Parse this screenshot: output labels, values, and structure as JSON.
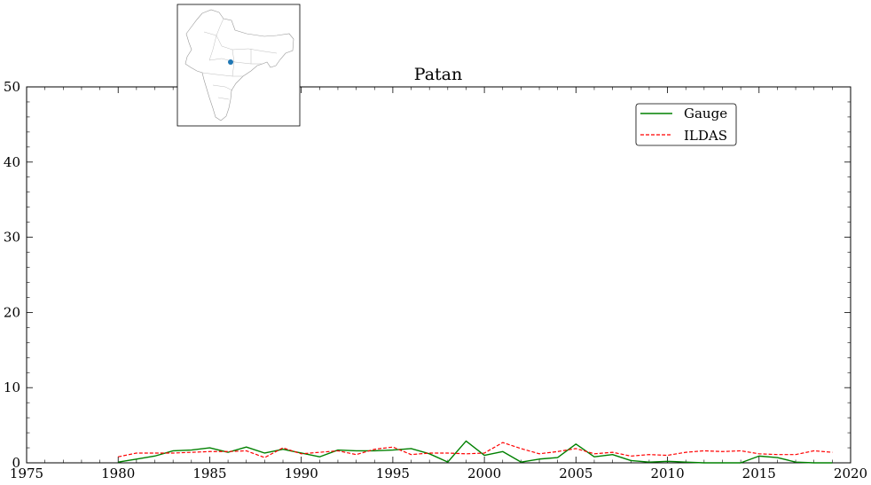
{
  "chart_data": {
    "type": "line",
    "title": "Patan",
    "xlabel": "",
    "ylabel": "",
    "xlim": [
      1975,
      2020
    ],
    "ylim": [
      0,
      50
    ],
    "xticks": [
      1975,
      1980,
      1985,
      1990,
      1995,
      2000,
      2005,
      2010,
      2015,
      2020
    ],
    "yticks": [
      0,
      10,
      20,
      30,
      40,
      50
    ],
    "grid": false,
    "legend_position": "top-right",
    "x": [
      1980,
      1981,
      1982,
      1983,
      1984,
      1985,
      1986,
      1987,
      1988,
      1989,
      1990,
      1991,
      1992,
      1993,
      1994,
      1995,
      1996,
      1997,
      1998,
      1999,
      2000,
      2001,
      2002,
      2003,
      2004,
      2005,
      2006,
      2007,
      2008,
      2009,
      2010,
      2011,
      2012,
      2013,
      2014,
      2015,
      2016,
      2017,
      2018,
      2019
    ],
    "series": [
      {
        "name": "Gauge",
        "color": "#008000",
        "style": "solid",
        "values": [
          0.1,
          0.5,
          0.9,
          1.6,
          1.7,
          2.0,
          1.4,
          2.1,
          1.3,
          1.8,
          1.3,
          0.8,
          1.7,
          1.6,
          1.6,
          1.7,
          1.9,
          1.2,
          0.1,
          2.9,
          1.0,
          1.5,
          0.1,
          0.5,
          0.7,
          2.5,
          0.8,
          1.1,
          0.3,
          0.1,
          0.2,
          0.1,
          0.0,
          0.0,
          0.0,
          0.9,
          0.7,
          0.1,
          0.0,
          0.0
        ]
      },
      {
        "name": "ILDAS",
        "color": "#ff0000",
        "style": "dashed",
        "values": [
          0.8,
          1.3,
          1.3,
          1.3,
          1.4,
          1.5,
          1.5,
          1.6,
          0.7,
          2.0,
          1.2,
          1.4,
          1.6,
          1.1,
          1.8,
          2.1,
          1.1,
          1.3,
          1.3,
          1.2,
          1.3,
          2.7,
          1.9,
          1.2,
          1.5,
          1.9,
          1.2,
          1.4,
          0.9,
          1.1,
          1.0,
          1.4,
          1.6,
          1.5,
          1.6,
          1.2,
          1.1,
          1.1,
          1.6,
          1.4
        ]
      }
    ],
    "inset_map": {
      "marker_color": "#1f77b4"
    }
  }
}
